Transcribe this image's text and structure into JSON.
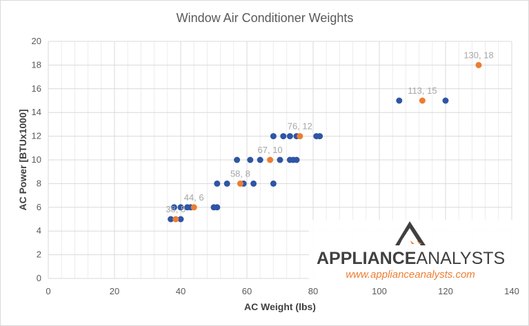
{
  "chart_data": {
    "type": "scatter",
    "title": "Window Air Conditioner Weights",
    "xlabel": "AC Weight (lbs)",
    "ylabel": "AC Power [BTUx1000]",
    "xlim": [
      0,
      140
    ],
    "ylim": [
      0,
      20
    ],
    "xticks": [
      0,
      20,
      40,
      60,
      80,
      100,
      120,
      140
    ],
    "yticks": [
      0,
      2,
      4,
      6,
      8,
      10,
      12,
      14,
      16,
      18,
      20
    ],
    "grid": true,
    "series": [
      {
        "color": "#2f55a4",
        "points": [
          [
            37,
            5
          ],
          [
            40,
            5
          ],
          [
            38,
            6
          ],
          [
            40,
            6
          ],
          [
            42,
            6
          ],
          [
            43,
            6
          ],
          [
            50,
            6
          ],
          [
            51,
            6
          ],
          [
            51,
            8
          ],
          [
            54,
            8
          ],
          [
            59,
            8
          ],
          [
            62,
            8
          ],
          [
            68,
            8
          ],
          [
            57,
            10
          ],
          [
            61,
            10
          ],
          [
            64,
            10
          ],
          [
            70,
            10
          ],
          [
            73,
            10
          ],
          [
            74,
            10
          ],
          [
            75,
            10
          ],
          [
            68,
            12
          ],
          [
            71,
            12
          ],
          [
            73,
            12
          ],
          [
            75,
            12
          ],
          [
            81,
            12
          ],
          [
            82,
            12
          ],
          [
            106,
            15
          ],
          [
            120,
            15
          ]
        ]
      },
      {
        "color": "#ed7d31",
        "labels": [
          "38, 5",
          "44, 6",
          "58, 8",
          "67, 10",
          "76, 12",
          "113, 15",
          "130, 18"
        ],
        "points": [
          [
            38.5,
            5
          ],
          [
            44,
            6
          ],
          [
            58,
            8
          ],
          [
            67,
            10
          ],
          [
            76,
            12
          ],
          [
            113,
            15
          ],
          [
            130,
            18
          ]
        ]
      }
    ]
  },
  "watermark": {
    "brand_bold": "APPLIANCE",
    "brand_light": "ANALYSTS",
    "url": "www.applianceanalysts.com",
    "accent": "#ed7d31"
  }
}
